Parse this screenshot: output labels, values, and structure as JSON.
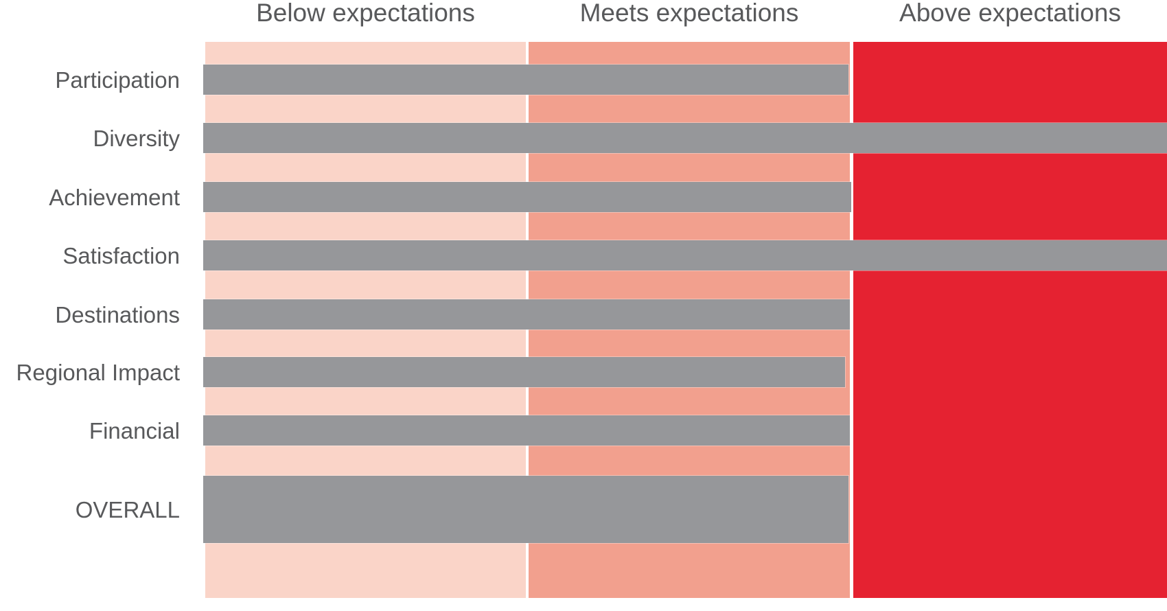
{
  "chart_data": {
    "type": "bar",
    "orientation": "horizontal",
    "title": "",
    "column_headers": [
      "Below expectations",
      "Meets expectations",
      "Above expectations"
    ],
    "bands": [
      {
        "label": "Below expectations",
        "color": "#FAD4C8",
        "start": 0.0,
        "end": 0.3333
      },
      {
        "label": "Meets expectations",
        "color": "#F2A08E",
        "start": 0.3362,
        "end": 0.6702
      },
      {
        "label": "Above expectations",
        "color": "#E52231",
        "start": 0.6738,
        "end": 1.0
      }
    ],
    "rows": [
      {
        "label": "Participation",
        "value": 0.669,
        "tall": false
      },
      {
        "label": "Diversity",
        "value": 1.0,
        "tall": false
      },
      {
        "label": "Achievement",
        "value": 0.672,
        "tall": false
      },
      {
        "label": "Satisfaction",
        "value": 1.0,
        "tall": false
      },
      {
        "label": "Destinations",
        "value": 0.67,
        "tall": false
      },
      {
        "label": "Regional Impact",
        "value": 0.665,
        "tall": false
      },
      {
        "label": "Financial",
        "value": 0.67,
        "tall": false
      },
      {
        "label": "OVERALL",
        "value": 0.669,
        "tall": true
      }
    ],
    "bar_color": "#96979A",
    "text_color": "#58595B",
    "value_scale": "fraction of full axis width; 0.333 = end of Below band, 0.670 = end of Meets band, 1.0 = right edge of Above band",
    "legend_position": "none",
    "grid": false
  }
}
